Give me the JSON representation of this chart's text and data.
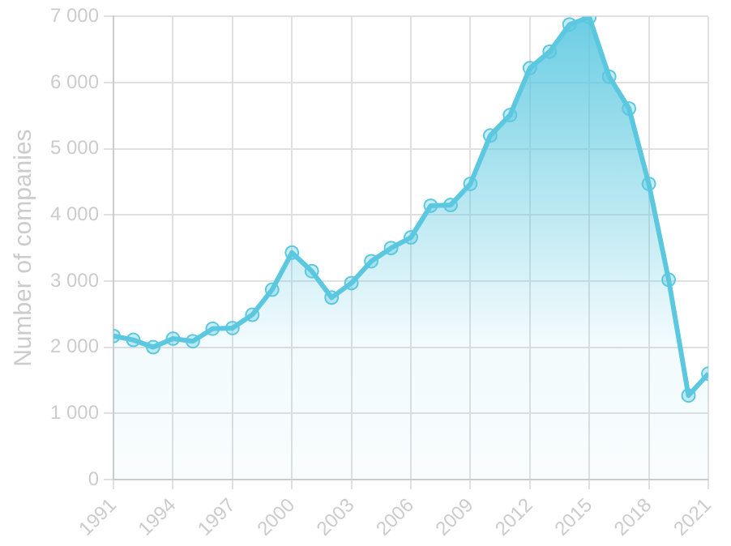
{
  "chart_data": {
    "type": "area",
    "ylabel": "Number of companies",
    "x": [
      1991,
      1992,
      1993,
      1994,
      1995,
      1996,
      1997,
      1998,
      1999,
      2000,
      2001,
      2002,
      2003,
      2004,
      2005,
      2006,
      2007,
      2008,
      2009,
      2010,
      2011,
      2012,
      2013,
      2014,
      2015,
      2016,
      2017,
      2018,
      2019,
      2020,
      2021
    ],
    "series": [
      {
        "color": "#5bc8e0",
        "values": [
          2170,
          2110,
          2000,
          2130,
          2090,
          2280,
          2290,
          2490,
          2870,
          3430,
          3150,
          2750,
          2970,
          3300,
          3500,
          3660,
          4140,
          4150,
          4470,
          5200,
          5510,
          6220,
          6470,
          6880,
          6990,
          6090,
          5610,
          4470,
          3020,
          1270,
          1600
        ]
      }
    ],
    "xlim": [
      1991,
      2021
    ],
    "xticks": [
      1991,
      1994,
      1997,
      2000,
      2003,
      2006,
      2009,
      2012,
      2015,
      2018,
      2021
    ],
    "ylim": [
      0,
      7000
    ],
    "yticks": [
      0,
      {
        "value": 1000,
        "label": "1 000"
      },
      {
        "value": 2000,
        "label": "2 000"
      },
      {
        "value": 3000,
        "label": "3 000"
      },
      {
        "value": 4000,
        "label": "4 000"
      },
      {
        "value": 5000,
        "label": "5 000"
      },
      {
        "value": 6000,
        "label": "6 000"
      },
      {
        "value": 7000,
        "label": "7 000"
      }
    ],
    "grid": true,
    "legend": false,
    "marker": "circle",
    "line_style": "solid"
  }
}
